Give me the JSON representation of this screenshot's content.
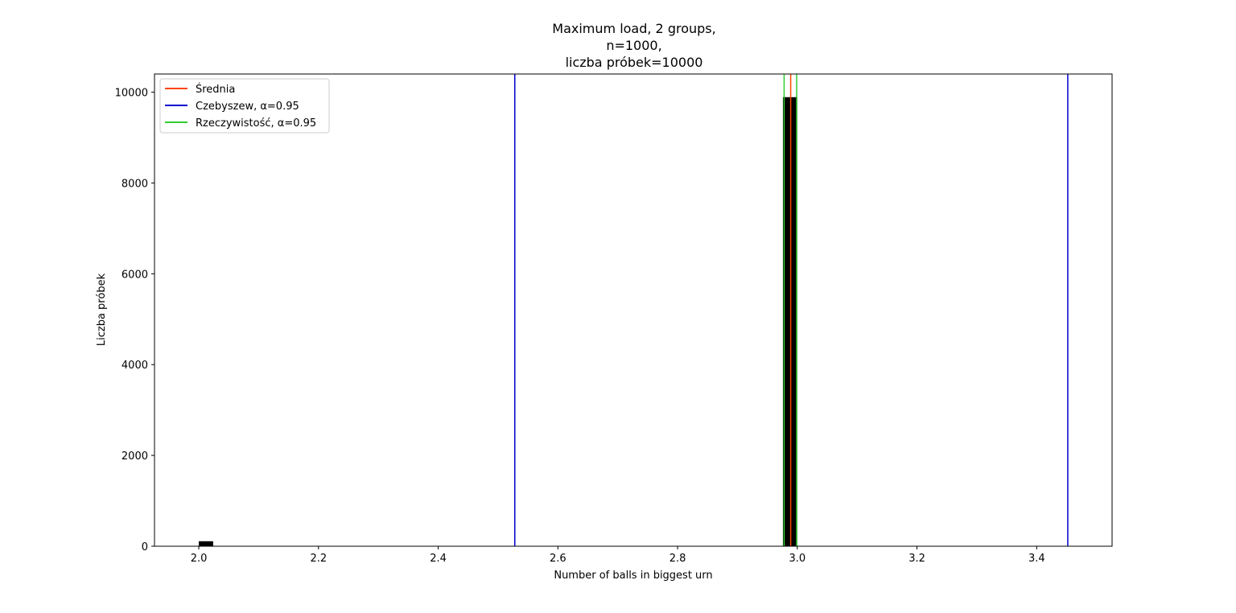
{
  "chart_data": {
    "type": "bar",
    "title": [
      "Maximum load, 2 groups,",
      "n=1000,",
      "liczba próbek=10000"
    ],
    "xlabel": "Number of balls in biggest urn",
    "ylabel": "Liczba próbek",
    "xlim": [
      1.926,
      3.526
    ],
    "ylim": [
      0,
      10400
    ],
    "xticks": [
      2.0,
      2.2,
      2.4,
      2.6,
      2.8,
      3.0,
      3.2,
      3.4
    ],
    "xtick_labels": [
      "2.0",
      "2.2",
      "2.4",
      "2.6",
      "2.8",
      "3.0",
      "3.2",
      "3.4"
    ],
    "yticks": [
      0,
      2000,
      4000,
      6000,
      8000,
      10000
    ],
    "ytick_labels": [
      "0",
      "2000",
      "4000",
      "6000",
      "8000",
      "10000"
    ],
    "bars": [
      {
        "x_start": 2.0,
        "x_end": 2.024,
        "value": 110
      },
      {
        "x_start": 2.976,
        "x_end": 3.0,
        "value": 9890
      }
    ],
    "bar_color": "#000000",
    "vlines": [
      {
        "name": "Średnia",
        "x": 2.989,
        "color": "#ff4500"
      },
      {
        "name": "Czebyszew, α=0.95",
        "x": 2.528,
        "color": "#0000cd"
      },
      {
        "name": "Czebyszew, α=0.95",
        "x": 3.452,
        "color": "#0000cd"
      },
      {
        "name": "Rzeczywistość, α=0.95",
        "x": 2.978,
        "color": "#32cd32"
      },
      {
        "name": "Rzeczywistość, α=0.95",
        "x": 2.999,
        "color": "#32cd32"
      }
    ],
    "legend": {
      "placement": "top-left",
      "entries": [
        {
          "label": "Średnia",
          "color": "#ff4500"
        },
        {
          "label": "Czebyszew, α=0.95",
          "color": "#0000cd"
        },
        {
          "label": "Rzeczywistość, α=0.95",
          "color": "#32cd32"
        }
      ]
    },
    "grid": false
  }
}
